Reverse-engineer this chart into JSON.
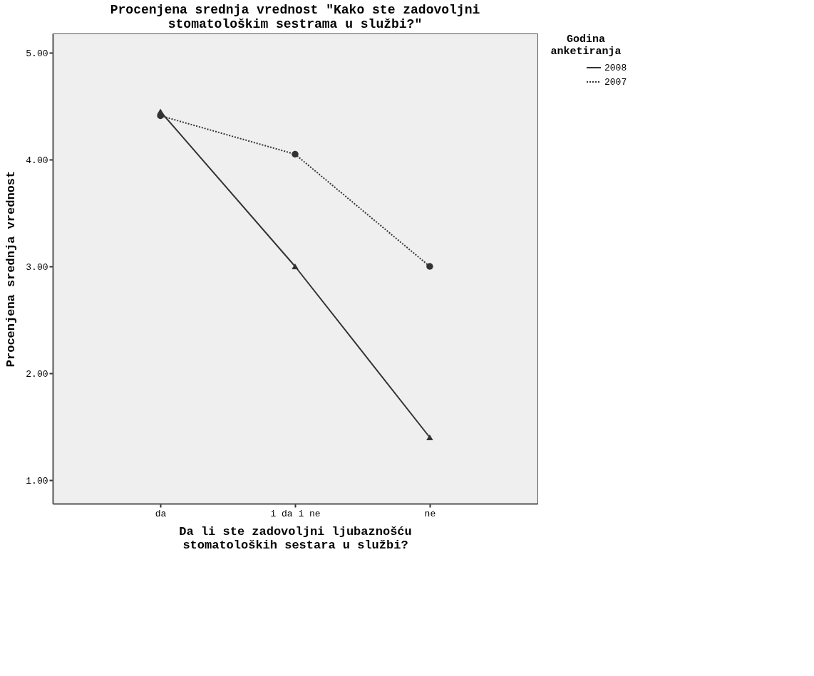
{
  "chart_data": {
    "type": "line",
    "title": [
      "Procenjena srednja vrednost \"Kako ste zadovoljni",
      "stomatološkim sestrama u službi?\""
    ],
    "xlabel": [
      "Da li ste zadovoljni ljubaznošću",
      "stomatoloških sestara u službi?"
    ],
    "ylabel": "Procenjena srednja vrednost",
    "legend_title": [
      "Godina",
      "anketiranja"
    ],
    "legend": "right",
    "grid": false,
    "categories": [
      "da",
      "i da i ne",
      "ne"
    ],
    "ylim": [
      0.78,
      5.18
    ],
    "yticks": [
      {
        "value": 1,
        "label": "1.00"
      },
      {
        "value": 2,
        "label": "2.00"
      },
      {
        "value": 3,
        "label": "3.00"
      },
      {
        "value": 4,
        "label": "4.00"
      },
      {
        "value": 5,
        "label": "5.00"
      }
    ],
    "series": [
      {
        "name": "2008",
        "color": "#333333",
        "line_style": "solid",
        "marker": "triangle",
        "values": [
          4.45,
          3.0,
          1.4
        ]
      },
      {
        "name": "2007",
        "color": "#333333",
        "line_style": "dotted",
        "marker": "circle",
        "values": [
          4.41,
          4.05,
          3.0
        ]
      }
    ]
  }
}
